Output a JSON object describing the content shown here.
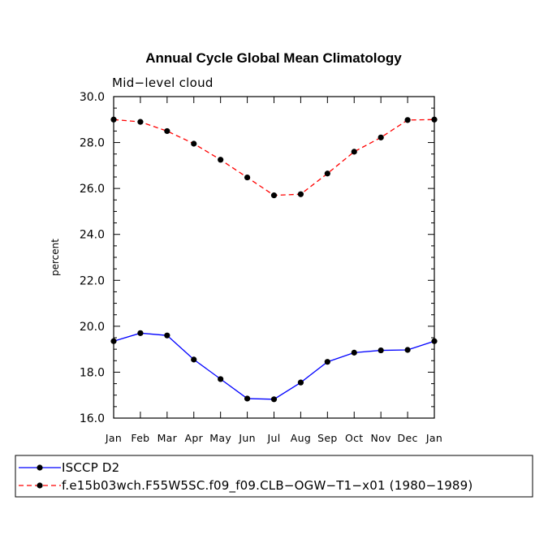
{
  "chart_data": {
    "type": "line",
    "title": "Annual Cycle Global Mean Climatology",
    "subtitle": "Mid−level cloud",
    "xlabel": "",
    "ylabel": "percent",
    "categories": [
      "Jan",
      "Feb",
      "Mar",
      "Apr",
      "May",
      "Jun",
      "Jul",
      "Aug",
      "Sep",
      "Oct",
      "Nov",
      "Dec",
      "Jan"
    ],
    "ylim": [
      16.0,
      30.0
    ],
    "yticks": [
      16.0,
      18.0,
      20.0,
      22.0,
      24.0,
      26.0,
      28.0,
      30.0
    ],
    "ytick_labels": [
      "16.0",
      "18.0",
      "20.0",
      "22.0",
      "24.0",
      "26.0",
      "28.0",
      "30.0"
    ],
    "grid": false,
    "legend_position": "bottom",
    "series": [
      {
        "name": "ISCCP D2",
        "color": "#0000ff",
        "style": "solid",
        "marker": "circle",
        "values": [
          19.35,
          19.7,
          19.6,
          18.55,
          17.7,
          16.85,
          16.82,
          17.55,
          18.45,
          18.85,
          18.95,
          18.97,
          19.35
        ]
      },
      {
        "name": "f.e15b03wch.F55W5SC.f09_f09.CLB−OGW−T1−x01 (1980−1989)",
        "color": "#ff0000",
        "style": "dashed",
        "marker": "circle",
        "values": [
          29.0,
          28.9,
          28.5,
          27.95,
          27.25,
          26.48,
          25.7,
          25.75,
          26.65,
          27.6,
          28.22,
          28.98,
          29.0
        ]
      }
    ]
  }
}
